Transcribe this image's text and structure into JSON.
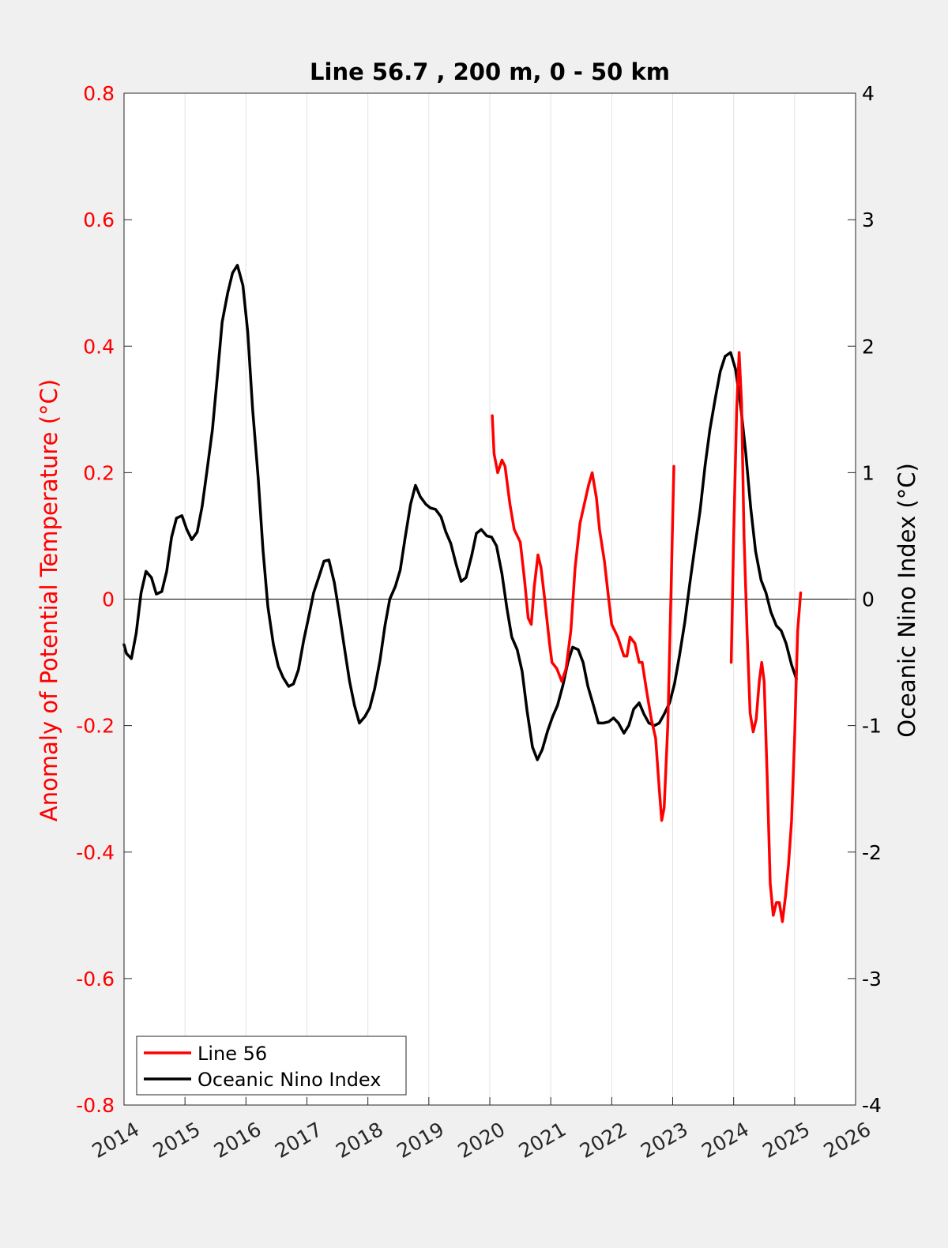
{
  "chart_data": {
    "type": "line",
    "title": "Line 56.7 , 200 m, 0 - 50 km",
    "xlabel": "",
    "ylabel": "Anomaly of Potential Temperature (°C)",
    "y2label": "Oceanic Nino Index (°C)",
    "xlim": [
      2014,
      2026
    ],
    "ylim": [
      -0.8,
      0.8
    ],
    "y2lim": [
      -4,
      4
    ],
    "x_ticks": [
      "2014",
      "2015",
      "2016",
      "2017",
      "2018",
      "2019",
      "2020",
      "2021",
      "2022",
      "2023",
      "2024",
      "2025",
      "2026"
    ],
    "y_ticks": [
      "-0.8",
      "-0.6",
      "-0.4",
      "-0.2",
      "0",
      "0.2",
      "0.4",
      "0.6",
      "0.8"
    ],
    "y2_ticks": [
      "-4",
      "-3",
      "-2",
      "-1",
      "0",
      "1",
      "2",
      "3",
      "4"
    ],
    "grid": "vertical",
    "legend_position": "bottom-left",
    "colors": {
      "line56": "#ff0000",
      "oni": "#000000",
      "left_axis": "#ff0000",
      "right_axis": "#000000",
      "background": "#f0f0f0",
      "plot_bg": "#ffffff"
    },
    "series": [
      {
        "name": "Line 56",
        "axis": "left",
        "segments": [
          [
            [
              2020.04,
              0.29
            ],
            [
              2020.07,
              0.23
            ],
            [
              2020.13,
              0.2
            ],
            [
              2020.2,
              0.22
            ],
            [
              2020.25,
              0.21
            ],
            [
              2020.33,
              0.15
            ],
            [
              2020.4,
              0.11
            ],
            [
              2020.5,
              0.09
            ],
            [
              2020.57,
              0.03
            ],
            [
              2020.63,
              -0.03
            ],
            [
              2020.68,
              -0.04
            ],
            [
              2020.73,
              0.02
            ],
            [
              2020.79,
              0.07
            ],
            [
              2020.84,
              0.05
            ],
            [
              2020.9,
              0.0
            ],
            [
              2020.98,
              -0.07
            ],
            [
              2021.02,
              -0.1
            ],
            [
              2021.1,
              -0.11
            ],
            [
              2021.18,
              -0.13
            ],
            [
              2021.25,
              -0.11
            ],
            [
              2021.33,
              -0.05
            ],
            [
              2021.4,
              0.05
            ],
            [
              2021.48,
              0.12
            ],
            [
              2021.55,
              0.15
            ],
            [
              2021.62,
              0.18
            ],
            [
              2021.68,
              0.2
            ],
            [
              2021.75,
              0.16
            ],
            [
              2021.8,
              0.11
            ],
            [
              2021.88,
              0.06
            ],
            [
              2021.95,
              0.0
            ],
            [
              2022.0,
              -0.04
            ],
            [
              2022.1,
              -0.06
            ],
            [
              2022.2,
              -0.09
            ],
            [
              2022.25,
              -0.09
            ],
            [
              2022.3,
              -0.06
            ],
            [
              2022.38,
              -0.07
            ],
            [
              2022.45,
              -0.1
            ],
            [
              2022.5,
              -0.1
            ],
            [
              2022.58,
              -0.15
            ],
            [
              2022.65,
              -0.19
            ],
            [
              2022.72,
              -0.22
            ],
            [
              2022.78,
              -0.3
            ],
            [
              2022.82,
              -0.35
            ],
            [
              2022.86,
              -0.33
            ],
            [
              2022.92,
              -0.2
            ],
            [
              2022.97,
              0.0
            ],
            [
              2023.02,
              0.21
            ]
          ],
          [
            [
              2023.96,
              -0.1
            ],
            [
              2024.0,
              0.1
            ],
            [
              2024.05,
              0.3
            ],
            [
              2024.09,
              0.39
            ],
            [
              2024.13,
              0.31
            ],
            [
              2024.17,
              0.1
            ],
            [
              2024.22,
              -0.05
            ],
            [
              2024.27,
              -0.18
            ],
            [
              2024.32,
              -0.21
            ],
            [
              2024.37,
              -0.19
            ],
            [
              2024.42,
              -0.13
            ],
            [
              2024.46,
              -0.1
            ],
            [
              2024.5,
              -0.13
            ],
            [
              2024.55,
              -0.28
            ],
            [
              2024.6,
              -0.45
            ],
            [
              2024.65,
              -0.5
            ],
            [
              2024.7,
              -0.48
            ],
            [
              2024.75,
              -0.48
            ],
            [
              2024.8,
              -0.51
            ],
            [
              2024.85,
              -0.47
            ],
            [
              2024.9,
              -0.42
            ],
            [
              2024.95,
              -0.35
            ],
            [
              2025.0,
              -0.22
            ],
            [
              2025.05,
              -0.05
            ],
            [
              2025.1,
              0.01
            ]
          ]
        ]
      },
      {
        "name": "Oceanic Nino Index",
        "axis": "right",
        "points": [
          [
            2014.0,
            -0.36
          ],
          [
            2014.04,
            -0.43
          ],
          [
            2014.12,
            -0.47
          ],
          [
            2014.2,
            -0.27
          ],
          [
            2014.28,
            0.05
          ],
          [
            2014.36,
            0.22
          ],
          [
            2014.45,
            0.17
          ],
          [
            2014.53,
            0.04
          ],
          [
            2014.62,
            0.06
          ],
          [
            2014.7,
            0.22
          ],
          [
            2014.78,
            0.49
          ],
          [
            2014.86,
            0.64
          ],
          [
            2014.95,
            0.66
          ],
          [
            2015.03,
            0.55
          ],
          [
            2015.11,
            0.47
          ],
          [
            2015.2,
            0.53
          ],
          [
            2015.28,
            0.73
          ],
          [
            2015.36,
            1.01
          ],
          [
            2015.45,
            1.34
          ],
          [
            2015.53,
            1.76
          ],
          [
            2015.61,
            2.19
          ],
          [
            2015.7,
            2.42
          ],
          [
            2015.78,
            2.58
          ],
          [
            2015.86,
            2.64
          ],
          [
            2015.95,
            2.48
          ],
          [
            2016.03,
            2.11
          ],
          [
            2016.11,
            1.5
          ],
          [
            2016.2,
            0.96
          ],
          [
            2016.28,
            0.39
          ],
          [
            2016.36,
            -0.06
          ],
          [
            2016.45,
            -0.36
          ],
          [
            2016.53,
            -0.53
          ],
          [
            2016.61,
            -0.62
          ],
          [
            2016.7,
            -0.69
          ],
          [
            2016.78,
            -0.67
          ],
          [
            2016.86,
            -0.56
          ],
          [
            2016.95,
            -0.32
          ],
          [
            2017.03,
            -0.14
          ],
          [
            2017.11,
            0.05
          ],
          [
            2017.2,
            0.18
          ],
          [
            2017.28,
            0.3
          ],
          [
            2017.36,
            0.31
          ],
          [
            2017.45,
            0.13
          ],
          [
            2017.53,
            -0.11
          ],
          [
            2017.61,
            -0.37
          ],
          [
            2017.7,
            -0.65
          ],
          [
            2017.78,
            -0.84
          ],
          [
            2017.86,
            -0.98
          ],
          [
            2017.95,
            -0.93
          ],
          [
            2018.03,
            -0.86
          ],
          [
            2018.11,
            -0.71
          ],
          [
            2018.2,
            -0.48
          ],
          [
            2018.28,
            -0.21
          ],
          [
            2018.36,
            0.0
          ],
          [
            2018.45,
            0.1
          ],
          [
            2018.53,
            0.23
          ],
          [
            2018.61,
            0.48
          ],
          [
            2018.7,
            0.75
          ],
          [
            2018.78,
            0.9
          ],
          [
            2018.86,
            0.81
          ],
          [
            2018.95,
            0.75
          ],
          [
            2019.03,
            0.72
          ],
          [
            2019.11,
            0.71
          ],
          [
            2019.2,
            0.65
          ],
          [
            2019.28,
            0.53
          ],
          [
            2019.36,
            0.44
          ],
          [
            2019.45,
            0.27
          ],
          [
            2019.53,
            0.14
          ],
          [
            2019.61,
            0.17
          ],
          [
            2019.7,
            0.34
          ],
          [
            2019.78,
            0.52
          ],
          [
            2019.86,
            0.55
          ],
          [
            2019.95,
            0.5
          ],
          [
            2020.03,
            0.49
          ],
          [
            2020.11,
            0.42
          ],
          [
            2020.2,
            0.2
          ],
          [
            2020.28,
            -0.07
          ],
          [
            2020.36,
            -0.3
          ],
          [
            2020.45,
            -0.4
          ],
          [
            2020.53,
            -0.57
          ],
          [
            2020.61,
            -0.88
          ],
          [
            2020.7,
            -1.17
          ],
          [
            2020.78,
            -1.27
          ],
          [
            2020.86,
            -1.19
          ],
          [
            2020.95,
            -1.04
          ],
          [
            2021.03,
            -0.93
          ],
          [
            2021.11,
            -0.84
          ],
          [
            2021.2,
            -0.68
          ],
          [
            2021.28,
            -0.5
          ],
          [
            2021.36,
            -0.38
          ],
          [
            2021.45,
            -0.4
          ],
          [
            2021.53,
            -0.5
          ],
          [
            2021.61,
            -0.69
          ],
          [
            2021.7,
            -0.84
          ],
          [
            2021.78,
            -0.98
          ],
          [
            2021.86,
            -0.98
          ],
          [
            2021.95,
            -0.97
          ],
          [
            2022.03,
            -0.94
          ],
          [
            2022.11,
            -0.98
          ],
          [
            2022.2,
            -1.06
          ],
          [
            2022.28,
            -1.0
          ],
          [
            2022.36,
            -0.87
          ],
          [
            2022.45,
            -0.82
          ],
          [
            2022.53,
            -0.91
          ],
          [
            2022.61,
            -0.98
          ],
          [
            2022.7,
            -1.0
          ],
          [
            2022.78,
            -0.98
          ],
          [
            2022.86,
            -0.91
          ],
          [
            2022.95,
            -0.82
          ],
          [
            2023.03,
            -0.67
          ],
          [
            2023.11,
            -0.45
          ],
          [
            2023.2,
            -0.18
          ],
          [
            2023.28,
            0.12
          ],
          [
            2023.36,
            0.4
          ],
          [
            2023.45,
            0.7
          ],
          [
            2023.53,
            1.05
          ],
          [
            2023.61,
            1.34
          ],
          [
            2023.7,
            1.59
          ],
          [
            2023.78,
            1.8
          ],
          [
            2023.86,
            1.92
          ],
          [
            2023.95,
            1.95
          ],
          [
            2024.03,
            1.82
          ],
          [
            2024.11,
            1.55
          ],
          [
            2024.2,
            1.15
          ],
          [
            2024.28,
            0.72
          ],
          [
            2024.36,
            0.38
          ],
          [
            2024.45,
            0.15
          ],
          [
            2024.53,
            0.05
          ],
          [
            2024.61,
            -0.1
          ],
          [
            2024.7,
            -0.21
          ],
          [
            2024.78,
            -0.25
          ],
          [
            2024.86,
            -0.35
          ],
          [
            2024.95,
            -0.52
          ],
          [
            2025.03,
            -0.63
          ]
        ]
      }
    ]
  }
}
